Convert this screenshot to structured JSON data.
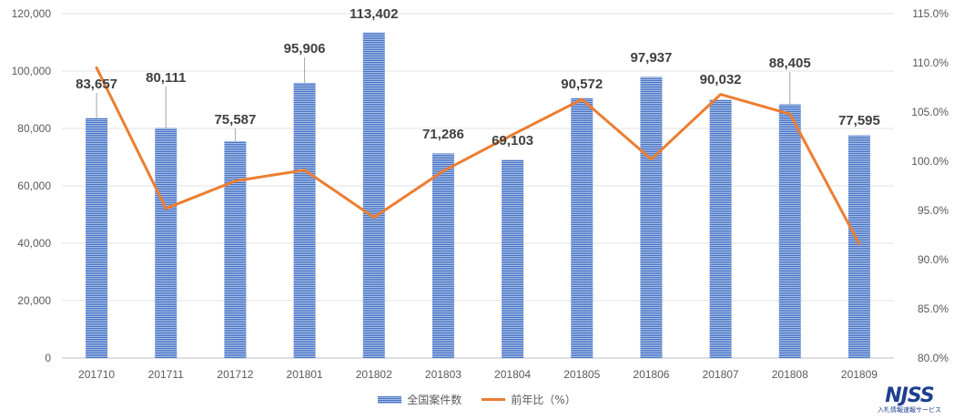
{
  "chart_data": {
    "type": "bar",
    "categories": [
      "201710",
      "201711",
      "201712",
      "201801",
      "201802",
      "201803",
      "201804",
      "201805",
      "201806",
      "201807",
      "201808",
      "201809"
    ],
    "series": [
      {
        "name": "全国案件数",
        "type": "bar",
        "axis": "left",
        "values": [
          83657,
          80111,
          75587,
          95906,
          113402,
          71286,
          69103,
          90572,
          97937,
          90032,
          88405,
          77595
        ],
        "labels": [
          "83,657",
          "80,111",
          "75,587",
          "95,906",
          "113,402",
          "71,286",
          "69,103",
          "90,572",
          "97,937",
          "90,032",
          "88,405",
          "77,595"
        ],
        "color": "#4472c4"
      },
      {
        "name": "前年比（%）",
        "type": "line",
        "axis": "right",
        "values": [
          109.5,
          95.2,
          98.0,
          99.1,
          94.3,
          99.0,
          102.7,
          106.3,
          100.2,
          106.8,
          104.8,
          91.6
        ],
        "color": "#ed7d31"
      }
    ],
    "y_left": {
      "min": 0,
      "max": 120000,
      "ticks": [
        "0",
        "20,000",
        "40,000",
        "60,000",
        "80,000",
        "100,000",
        "120,000"
      ]
    },
    "y_right": {
      "min": 80,
      "max": 115,
      "ticks": [
        "80.0%",
        "85.0%",
        "90.0%",
        "95.0%",
        "100.0%",
        "105.0%",
        "110.0%",
        "115.0%"
      ]
    },
    "grid": true,
    "legend": "bottom-center"
  },
  "logo": {
    "mark": "NJSS",
    "sub": "入札情報速報サービス"
  }
}
